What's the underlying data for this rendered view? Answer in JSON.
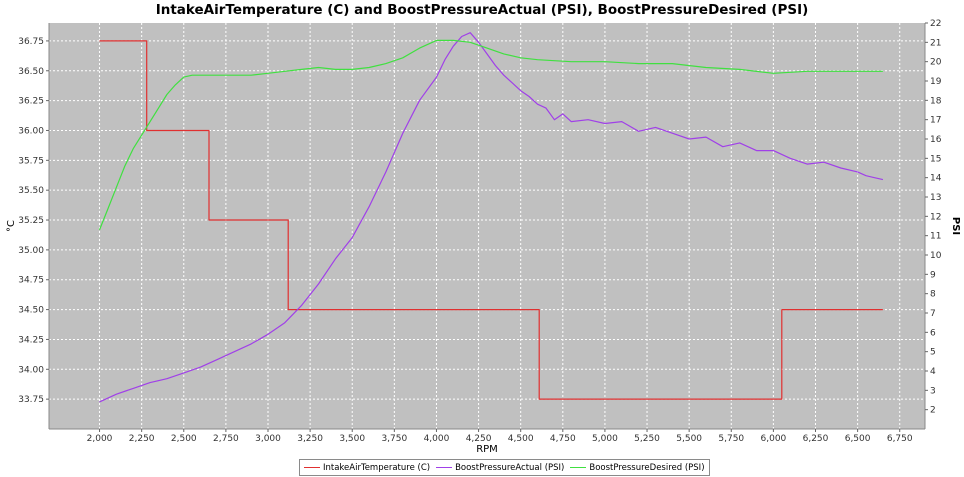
{
  "chart_data": {
    "type": "line",
    "title": "IntakeAirTemperature (C) and BoostPressureActual (PSI), BoostPressureDesired (PSI)",
    "xlabel": "RPM",
    "ylabel_left": "°C",
    "ylabel_right": "PSI",
    "xlim": [
      1700,
      6900
    ],
    "ylim_left": [
      33.5,
      36.9
    ],
    "ylim_right": [
      1,
      22
    ],
    "x_ticks": [
      "2,000",
      "2,250",
      "2,500",
      "2,750",
      "3,000",
      "3,250",
      "3,500",
      "3,750",
      "4,000",
      "4,250",
      "4,500",
      "4,750",
      "5,000",
      "5,250",
      "5,500",
      "5,750",
      "6,000",
      "6,250",
      "6,500",
      "6,750"
    ],
    "y_left_ticks": [
      "33.75",
      "34.00",
      "34.25",
      "34.50",
      "34.75",
      "35.00",
      "35.25",
      "35.50",
      "35.75",
      "36.00",
      "36.25",
      "36.50",
      "36.75"
    ],
    "y_right_ticks": [
      "2",
      "3",
      "4",
      "5",
      "6",
      "7",
      "8",
      "9",
      "10",
      "11",
      "12",
      "13",
      "14",
      "15",
      "16",
      "17",
      "18",
      "19",
      "20",
      "21",
      "22"
    ],
    "grid": true,
    "legend_position": "bottom",
    "background": "#c0c0c0",
    "series": [
      {
        "name": "IntakeAirTemperature (C)",
        "axis": "left",
        "color": "#e03030",
        "step": true,
        "x": [
          2000,
          2280,
          2280,
          2650,
          2650,
          3120,
          3120,
          4610,
          4610,
          6050,
          6050,
          6650
        ],
        "y": [
          36.75,
          36.75,
          36.0,
          36.0,
          35.25,
          35.25,
          34.5,
          34.5,
          33.75,
          33.75,
          34.5,
          34.5
        ]
      },
      {
        "name": "BoostPressureActual (PSI)",
        "axis": "right",
        "color": "#a040e8",
        "x": [
          2000,
          2100,
          2200,
          2300,
          2400,
          2500,
          2600,
          2700,
          2800,
          2900,
          3000,
          3100,
          3200,
          3300,
          3400,
          3500,
          3600,
          3700,
          3800,
          3900,
          4000,
          4050,
          4100,
          4150,
          4200,
          4250,
          4300,
          4350,
          4400,
          4450,
          4500,
          4550,
          4600,
          4650,
          4700,
          4750,
          4800,
          4900,
          5000,
          5100,
          5200,
          5300,
          5400,
          5500,
          5600,
          5700,
          5800,
          5900,
          6000,
          6100,
          6200,
          6300,
          6400,
          6500,
          6550,
          6600,
          6650
        ],
        "y": [
          2.4,
          2.8,
          3.1,
          3.4,
          3.6,
          3.9,
          4.2,
          4.6,
          5.0,
          5.4,
          5.9,
          6.5,
          7.4,
          8.5,
          9.8,
          10.9,
          12.5,
          14.3,
          16.3,
          18.0,
          19.2,
          20.1,
          20.8,
          21.3,
          21.5,
          21.0,
          20.4,
          19.8,
          19.3,
          18.9,
          18.5,
          18.2,
          17.8,
          17.6,
          17.0,
          17.3,
          16.9,
          17.0,
          16.8,
          16.9,
          16.4,
          16.6,
          16.3,
          16.0,
          16.1,
          15.6,
          15.8,
          15.4,
          15.4,
          15.0,
          14.7,
          14.8,
          14.5,
          14.3,
          14.1,
          14.0,
          13.9
        ]
      },
      {
        "name": "BoostPressureDesired (PSI)",
        "axis": "right",
        "color": "#40e040",
        "x": [
          2000,
          2050,
          2100,
          2150,
          2200,
          2250,
          2300,
          2350,
          2400,
          2450,
          2500,
          2550,
          2600,
          2700,
          2800,
          2900,
          3000,
          3100,
          3200,
          3300,
          3400,
          3500,
          3600,
          3700,
          3800,
          3900,
          4000,
          4100,
          4200,
          4300,
          4400,
          4500,
          4600,
          4800,
          5000,
          5200,
          5400,
          5600,
          5800,
          6000,
          6200,
          6400,
          6650
        ],
        "y": [
          11.3,
          12.4,
          13.5,
          14.6,
          15.5,
          16.2,
          16.9,
          17.6,
          18.3,
          18.8,
          19.2,
          19.3,
          19.3,
          19.3,
          19.3,
          19.3,
          19.4,
          19.5,
          19.6,
          19.7,
          19.6,
          19.6,
          19.7,
          19.9,
          20.2,
          20.7,
          21.1,
          21.1,
          21.0,
          20.7,
          20.4,
          20.2,
          20.1,
          20.0,
          20.0,
          19.9,
          19.9,
          19.7,
          19.6,
          19.4,
          19.5,
          19.5,
          19.5
        ]
      }
    ]
  }
}
